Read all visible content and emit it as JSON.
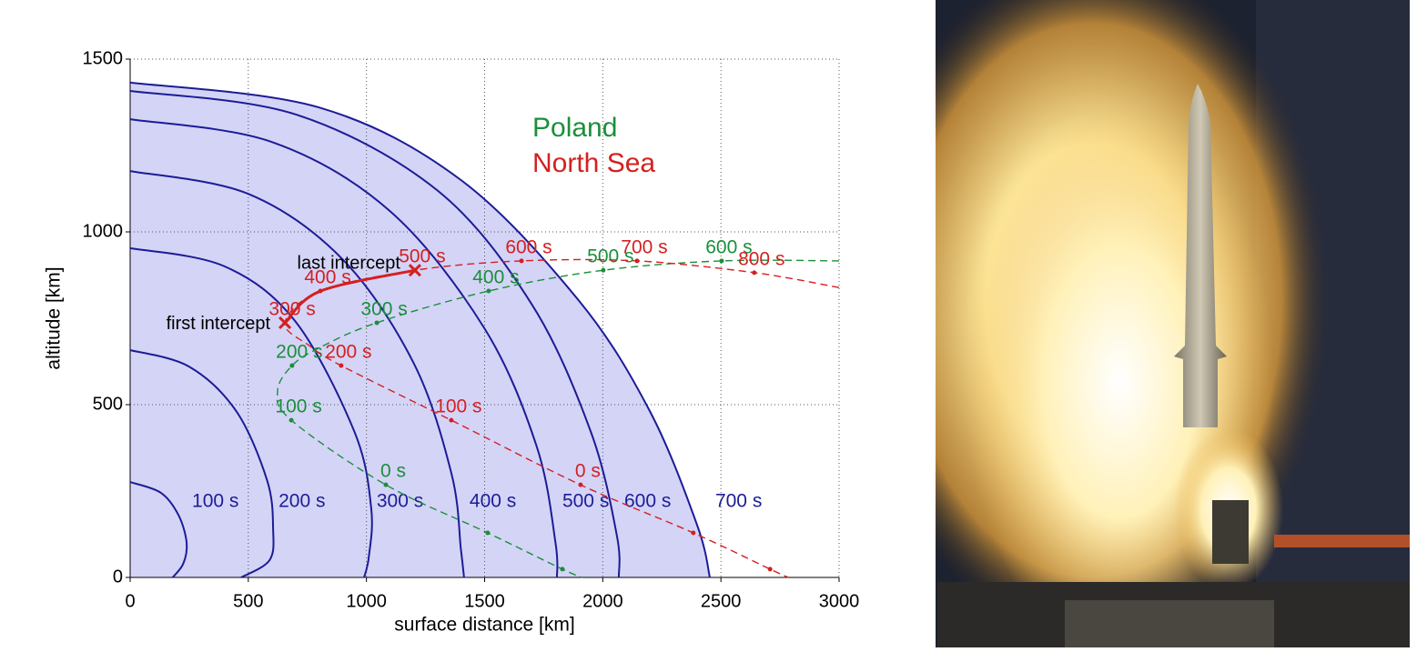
{
  "chart_data": {
    "type": "line",
    "xlabel": "surface distance [km]",
    "ylabel": "altitude [km]",
    "xlim": [
      0,
      3000
    ],
    "ylim": [
      0,
      1500
    ],
    "xticks": [
      0,
      500,
      1000,
      1500,
      2000,
      2500,
      3000
    ],
    "yticks": [
      0,
      500,
      1000,
      1500
    ],
    "grid": true,
    "envelope_fill": "#d4d4f7",
    "contours": [
      {
        "name": "100 s",
        "color": "#1c1c96",
        "x": [
          0,
          130,
          205,
          239,
          225,
          180
        ],
        "y": [
          276,
          245,
          180,
          100,
          40,
          0
        ]
      },
      {
        "name": "200 s",
        "color": "#1c1c96",
        "x": [
          0,
          250,
          450,
          580,
          605,
          590,
          470
        ],
        "y": [
          658,
          610,
          480,
          280,
          140,
          50,
          0
        ]
      },
      {
        "name": "300 s",
        "color": "#1c1c96",
        "x": [
          0,
          400,
          700,
          950,
          1020,
          1010,
          990
        ],
        "y": [
          953,
          900,
          740,
          420,
          200,
          60,
          0
        ]
      },
      {
        "name": "400 s",
        "color": "#1c1c96",
        "x": [
          0,
          500,
          900,
          1200,
          1360,
          1400,
          1413
        ],
        "y": [
          1176,
          1110,
          920,
          620,
          300,
          80,
          0
        ]
      },
      {
        "name": "500 s",
        "color": "#1c1c96",
        "x": [
          0,
          600,
          1100,
          1500,
          1720,
          1800,
          1806
        ],
        "y": [
          1326,
          1260,
          1060,
          720,
          380,
          100,
          0
        ]
      },
      {
        "name": "600 s",
        "color": "#1c1c96",
        "x": [
          0,
          700,
          1300,
          1700,
          1950,
          2060,
          2068
        ],
        "y": [
          1408,
          1340,
          1120,
          790,
          420,
          120,
          0
        ]
      },
      {
        "name": "700 s",
        "color": "#1c1c96",
        "x": [
          0,
          800,
          1400,
          1900,
          2200,
          2400,
          2453
        ],
        "y": [
          1432,
          1360,
          1150,
          800,
          480,
          150,
          0
        ]
      }
    ],
    "trajectories": [
      {
        "name": "Poland",
        "color": "#1a8f3a",
        "x": [
          3000,
          2503,
          2002,
          1517,
          1044,
          805,
          685,
          624,
          682,
          1082,
          1513,
          1829,
          1913
        ],
        "y": [
          916,
          916,
          889,
          829,
          737,
          666,
          613,
          539,
          455,
          268,
          129,
          24,
          0
        ],
        "markers": [
          {
            "label": null,
            "x": 1829,
            "y": 24
          },
          {
            "label": null,
            "x": 1513,
            "y": 129
          },
          {
            "label": "0 s",
            "x": 1082,
            "y": 268
          },
          {
            "label": "100 s",
            "x": 682,
            "y": 455
          },
          {
            "label": "200 s",
            "x": 685,
            "y": 613
          },
          {
            "label": "300 s",
            "x": 1044,
            "y": 737
          },
          {
            "label": "400 s",
            "x": 1517,
            "y": 829
          },
          {
            "label": "500 s",
            "x": 2002,
            "y": 889
          },
          {
            "label": "600 s",
            "x": 2503,
            "y": 916
          }
        ]
      },
      {
        "name": "North Sea",
        "color": "#d42020",
        "x": [
          3000,
          2641,
          2145,
          1656,
          1205,
          805,
          655,
          760,
          893,
          1359,
          1906,
          2383,
          2708,
          2785
        ],
        "y": [
          839,
          882,
          916,
          916,
          889,
          829,
          737,
          670,
          613,
          455,
          268,
          129,
          24,
          0
        ],
        "markers": [
          {
            "label": null,
            "x": 2708,
            "y": 24
          },
          {
            "label": null,
            "x": 2383,
            "y": 129
          },
          {
            "label": "0 s",
            "x": 1906,
            "y": 268
          },
          {
            "label": "100 s",
            "x": 1359,
            "y": 455
          },
          {
            "label": "200 s",
            "x": 893,
            "y": 613
          },
          {
            "label": "300 s",
            "x": 655,
            "y": 737
          },
          {
            "label": "400 s",
            "x": 805,
            "y": 829
          },
          {
            "label": "500 s",
            "x": 1205,
            "y": 889
          },
          {
            "label": "600 s",
            "x": 1656,
            "y": 916
          },
          {
            "label": "700 s",
            "x": 2145,
            "y": 916
          },
          {
            "label": "800 s",
            "x": 2641,
            "y": 882
          }
        ]
      }
    ],
    "intercepts": [
      {
        "label": "first intercept",
        "x": 655,
        "y": 737
      },
      {
        "label": "last intercept",
        "x": 1205,
        "y": 889
      }
    ]
  }
}
